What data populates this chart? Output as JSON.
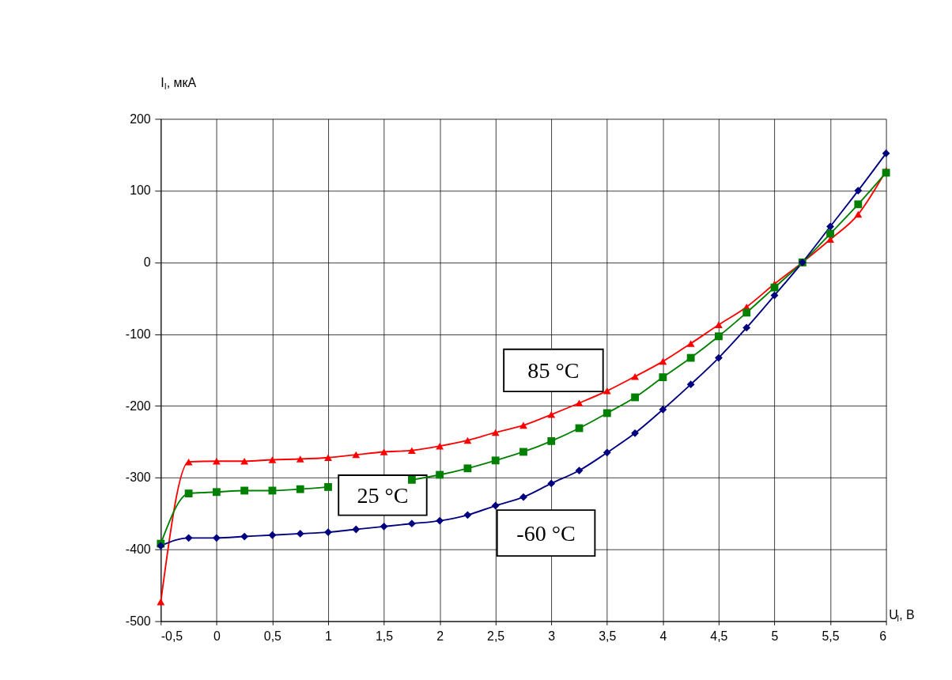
{
  "chart_data": {
    "type": "line",
    "xlabel": "U$_{I}$, В",
    "ylabel": "I$_{I}$, мкА",
    "x": [
      -0.5,
      -0.25,
      0,
      0.25,
      0.5,
      0.75,
      1,
      1.25,
      1.5,
      1.75,
      2,
      2.25,
      2.5,
      2.75,
      3,
      3.25,
      3.5,
      3.75,
      4,
      4.25,
      4.5,
      4.75,
      5,
      5.25,
      5.5,
      5.75,
      6
    ],
    "series": [
      {
        "name": "85 °C",
        "color": "#ff0000",
        "marker": "triangle",
        "values": [
          -473,
          -278,
          -277,
          -277,
          -275,
          -274,
          -272,
          -268,
          -264,
          -262,
          -256,
          -248,
          -237,
          -227,
          -212,
          -196,
          -179,
          -159,
          -138,
          -113,
          -87,
          -62,
          -30,
          0,
          32,
          67,
          128
        ]
      },
      {
        "name": "25 °C",
        "color": "#008000",
        "marker": "square",
        "values": [
          -392,
          -322,
          -320,
          -318,
          -318,
          -316,
          -313,
          null,
          null,
          -303,
          -296,
          -287,
          -276,
          -264,
          -249,
          -231,
          -210,
          -188,
          -160,
          -133,
          -103,
          -70,
          -35,
          0,
          40,
          81,
          125
        ]
      },
      {
        "name": "-60 °C",
        "color": "#000080",
        "marker": "diamond",
        "values": [
          -395,
          -384,
          -384,
          -382,
          -380,
          -378,
          -376,
          -372,
          -368,
          -364,
          -360,
          -352,
          -339,
          -327,
          -308,
          -290,
          -265,
          -238,
          -205,
          -170,
          -133,
          -91,
          -46,
          0,
          50,
          100,
          152
        ]
      }
    ],
    "xlim": [
      -0.5,
      6
    ],
    "xticks": [
      {
        "value": -0.5,
        "label": "-0,5"
      },
      0,
      {
        "value": 0.5,
        "label": "0,5"
      },
      1,
      {
        "value": 1.5,
        "label": "1,5"
      },
      2,
      {
        "value": 2.5,
        "label": "2,5"
      },
      3,
      {
        "value": 3.5,
        "label": "3,5"
      },
      4,
      {
        "value": 4.5,
        "label": "4,5"
      },
      5,
      {
        "value": 5.5,
        "label": "5,5"
      },
      6
    ],
    "ylim": [
      -500,
      200
    ],
    "yticks": [
      -500,
      -400,
      -300,
      -200,
      -100,
      0,
      100,
      200
    ],
    "grid": true,
    "legend": false,
    "line_style": "solid"
  }
}
